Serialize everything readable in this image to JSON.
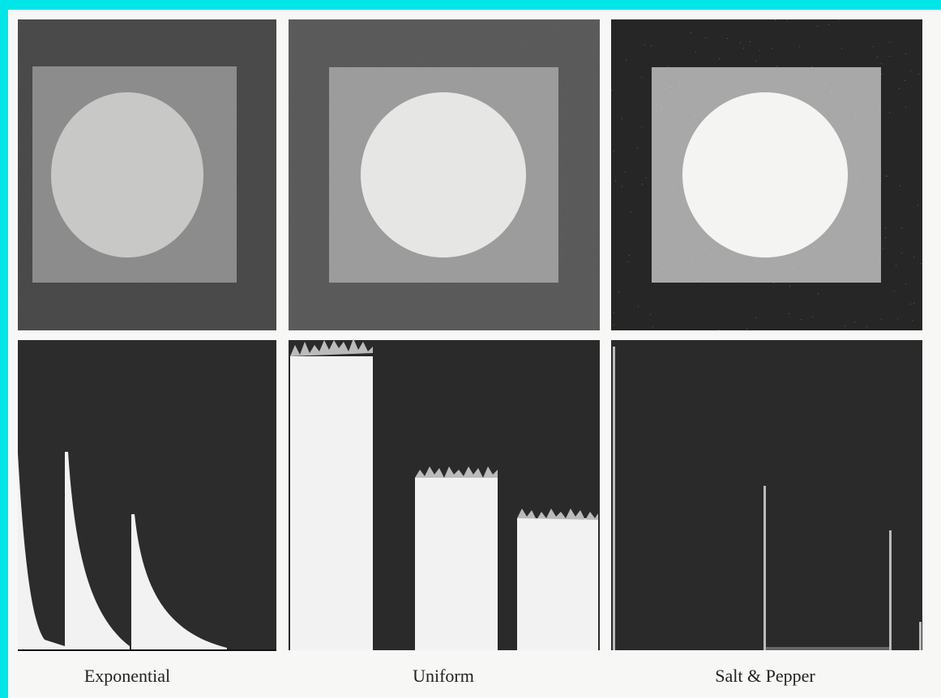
{
  "figure": {
    "labels": [
      "Exponential",
      "Uniform",
      "Salt & Pepper"
    ]
  }
}
